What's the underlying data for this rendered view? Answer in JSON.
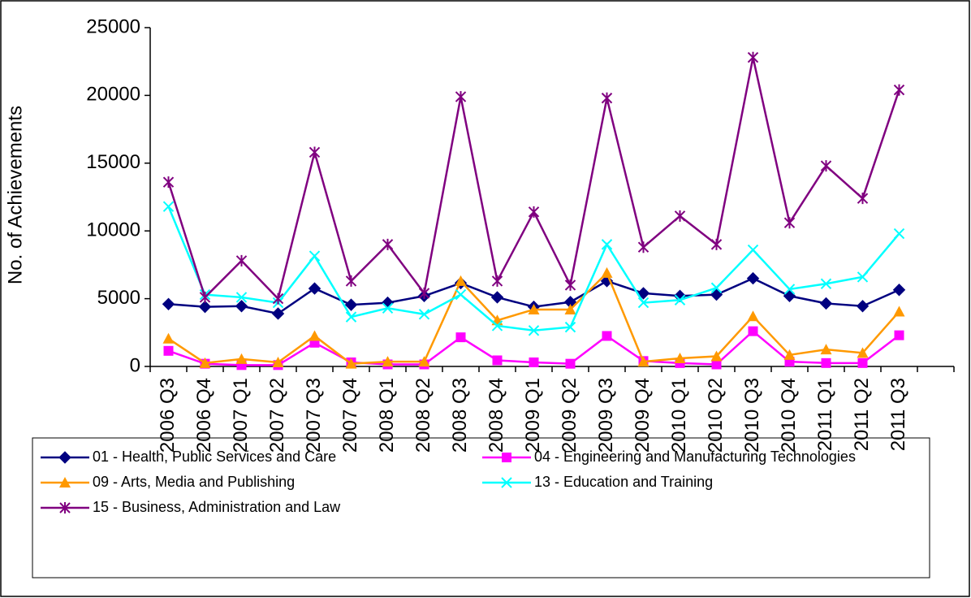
{
  "chart_data": {
    "type": "line",
    "y_label": "No. of Achievements",
    "categories": [
      "2006 Q3",
      "2006 Q4",
      "2007 Q1",
      "2007 Q2",
      "2007 Q3",
      "2007 Q4",
      "2008 Q1",
      "2008 Q2",
      "2008 Q3",
      "2008 Q4",
      "2009 Q1",
      "2009 Q2",
      "2009 Q3",
      "2009 Q4",
      "2010 Q1",
      "2010 Q2",
      "2010 Q3",
      "2010 Q4",
      "2011 Q1",
      "2011 Q2",
      "2011 Q3",
      null
    ],
    "ylim": [
      0,
      25000
    ],
    "yticks": [
      0,
      5000,
      10000,
      15000,
      20000,
      25000
    ],
    "grid": false,
    "legend": "bottom",
    "series": [
      {
        "name": "01 - Health, Public Services and Care",
        "color": "#000080",
        "marker": "diamond",
        "values": [
          4600,
          4400,
          4450,
          3900,
          5750,
          4550,
          4700,
          5200,
          6150,
          5100,
          4400,
          4750,
          6300,
          5400,
          5200,
          5300,
          6500,
          5200,
          4650,
          4450,
          5650,
          null
        ]
      },
      {
        "name": "04 - Engineering and Manufacturing Technologies",
        "color": "#ff00ff",
        "marker": "square",
        "values": [
          1150,
          200,
          100,
          100,
          1750,
          300,
          150,
          150,
          2150,
          450,
          300,
          200,
          2250,
          400,
          250,
          150,
          2600,
          350,
          250,
          250,
          2300,
          null
        ]
      },
      {
        "name": "09 - Arts, Media and Publishing",
        "color": "#ff9900",
        "marker": "triangle",
        "values": [
          2050,
          250,
          550,
          300,
          2250,
          200,
          350,
          350,
          6300,
          3400,
          4200,
          4200,
          6900,
          350,
          600,
          750,
          3700,
          850,
          1250,
          1000,
          4050,
          null
        ]
      },
      {
        "name": "13 - Education and Training",
        "color": "#00ffff",
        "marker": "x",
        "values": [
          11800,
          5300,
          5100,
          4700,
          8150,
          3650,
          4300,
          3850,
          5300,
          3000,
          2650,
          2900,
          9000,
          4700,
          4900,
          5800,
          8600,
          5700,
          6100,
          6600,
          9800,
          null
        ]
      },
      {
        "name": "15 - Business, Administration and Law",
        "color": "#800080",
        "marker": "star",
        "values": [
          13600,
          5100,
          7800,
          5000,
          15800,
          6300,
          9000,
          5400,
          19900,
          6300,
          11400,
          6000,
          19800,
          8800,
          11100,
          9000,
          22800,
          10600,
          14800,
          12400,
          20400,
          null
        ]
      }
    ]
  }
}
